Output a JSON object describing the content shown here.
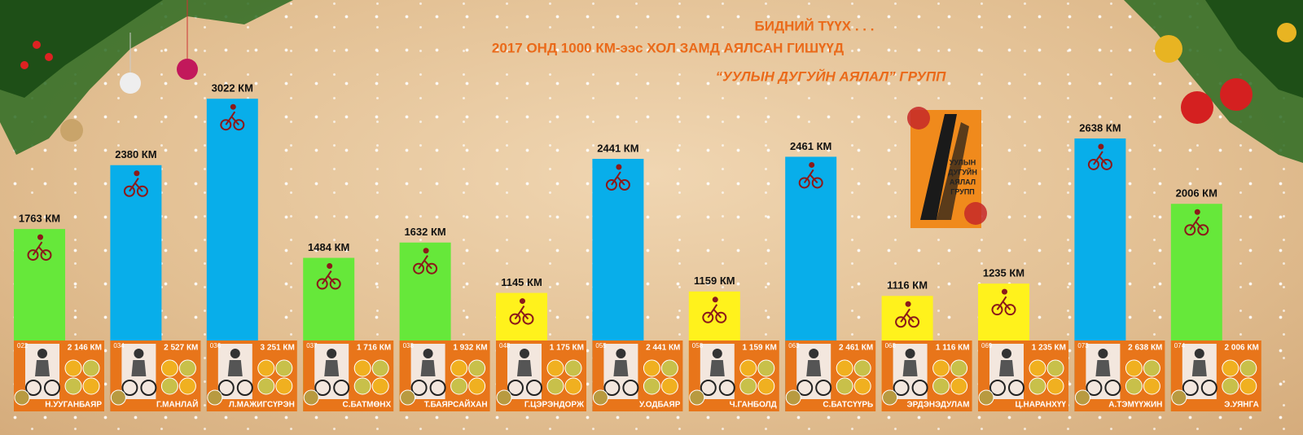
{
  "header": {
    "line1": "БИДНИЙ ТҮҮХ . . .",
    "line2": "2017 ОНД 1000 КМ-ээс ХОЛ ЗАМД АЯЛСАН ГИШҮҮД",
    "line3": "“УУЛЫН ДУГУЙН АЯЛАЛ” ГРУПП"
  },
  "logo": {
    "lines": [
      "УУЛЫН",
      "ДУГУЙН",
      "АЯЛАЛ",
      "ГРУПП"
    ]
  },
  "chart_data": {
    "type": "bar",
    "categories": [
      "Н.УУГАНБАЯР",
      "Г.МАНЛАЙ",
      "Л.МАЖИГСҮРЭН",
      "С.БАТМӨНХ",
      "Т.БАЯРСАЙХАН",
      "Г.ЦЭРЭНДОРЖ",
      "У.ОДБАЯР",
      "Ч.ГАНБОЛД",
      "С.БАТСҮҮРЬ",
      "ЭРДЭНЭДУЛАМ",
      "Ц.НАРАНХҮҮ",
      "А.ТЭМҮҮЖИН",
      "Э.УЯНГА"
    ],
    "values": [
      1763,
      2380,
      3022,
      1484,
      1632,
      1145,
      2441,
      1159,
      2461,
      1116,
      1235,
      2638,
      2006
    ],
    "value_labels": [
      "1763 КМ",
      "2380 КМ",
      "3022 КМ",
      "1484 КМ",
      "1632 КМ",
      "1145 КМ",
      "2441 КМ",
      "1159 КМ",
      "2461 КМ",
      "1116 КМ",
      "1235 КМ",
      "2638 КМ",
      "2006 КМ"
    ],
    "colors": [
      "#66e83a",
      "#08aeea",
      "#08aeea",
      "#66e83a",
      "#66e83a",
      "#fff21c",
      "#08aeea",
      "#fff21c",
      "#08aeea",
      "#fff21c",
      "#fff21c",
      "#08aeea",
      "#66e83a"
    ],
    "ids": [
      "022",
      "034",
      "036",
      "037",
      "038",
      "048",
      "055",
      "058",
      "063",
      "068",
      "069",
      "073",
      "074"
    ],
    "totals": [
      "2 146 КМ",
      "2 527 КМ",
      "3 251 КМ",
      "1 716 КМ",
      "1 932 КМ",
      "1 175 КМ",
      "2 441 КМ",
      "1 159 КМ",
      "2 461 КМ",
      "1 116 КМ",
      "1 235 КМ",
      "2 638 КМ",
      "2 006 КМ"
    ],
    "ylim": [
      0,
      4000
    ]
  }
}
